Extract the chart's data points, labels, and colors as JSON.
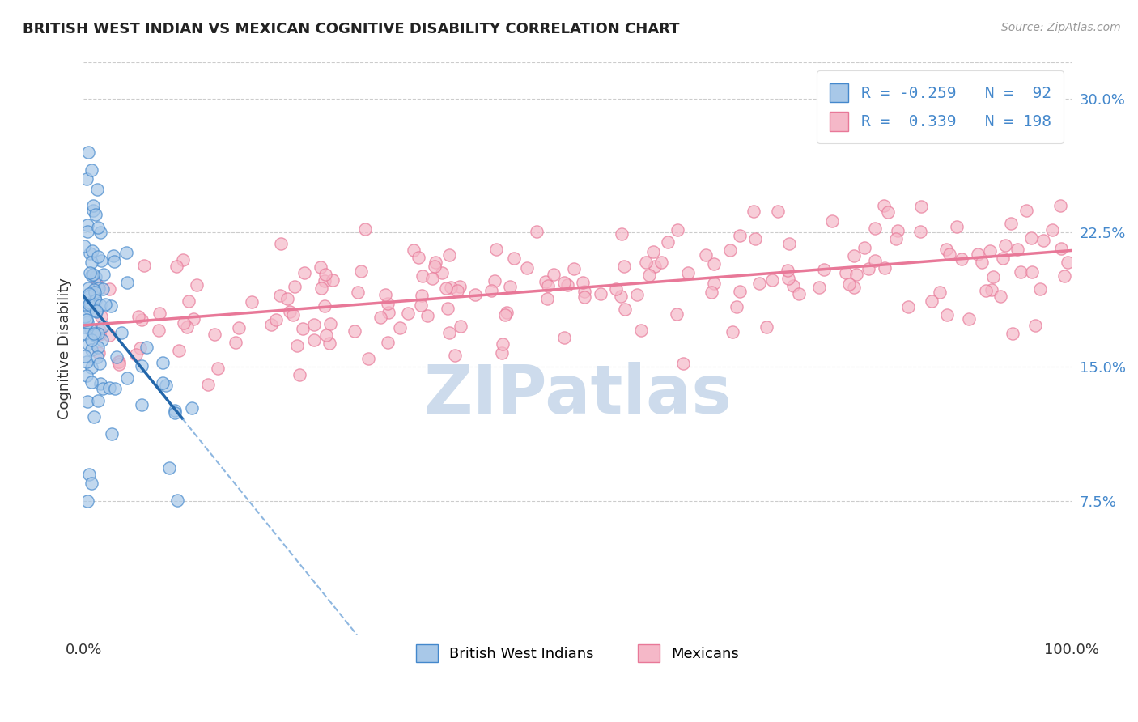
{
  "title": "BRITISH WEST INDIAN VS MEXICAN COGNITIVE DISABILITY CORRELATION CHART",
  "source": "Source: ZipAtlas.com",
  "ylabel": "Cognitive Disability",
  "xlim": [
    0.0,
    100.0
  ],
  "ylim": [
    0.0,
    32.0
  ],
  "yticks": [
    7.5,
    15.0,
    22.5,
    30.0
  ],
  "legend_labels": [
    "British West Indians",
    "Mexicans"
  ],
  "legend_r": [
    -0.259,
    0.339
  ],
  "legend_n": [
    92,
    198
  ],
  "blue_color": "#a8c8e8",
  "pink_color": "#f5b8c8",
  "blue_edge": "#4488cc",
  "pink_edge": "#e87898",
  "trend_blue": "#2266aa",
  "trend_pink": "#e87898",
  "watermark": "ZIPatlas",
  "watermark_color": "#c8d8ea",
  "blue_label_color": "#4488cc",
  "tick_label_color": "#4488cc"
}
